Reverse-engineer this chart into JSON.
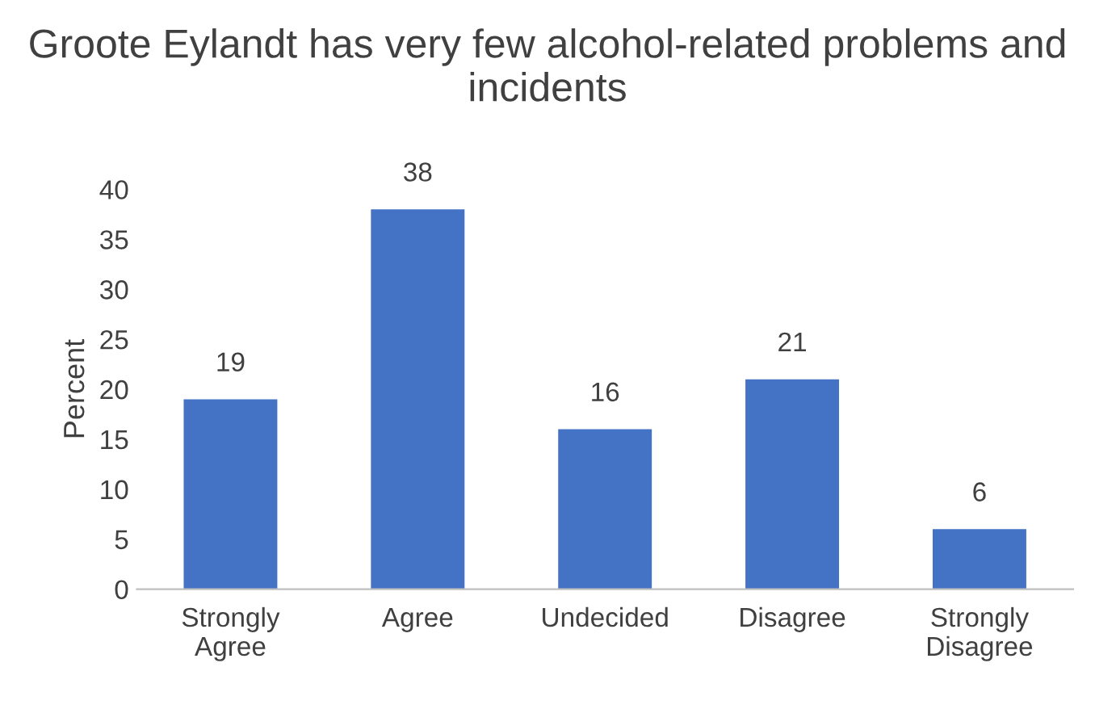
{
  "chart_data": {
    "type": "bar",
    "title": "Groote Eylandt has very few alcohol-related problems and incidents",
    "ylabel": "Percent",
    "categories": [
      "Strongly\nAgree",
      "Agree",
      "Undecided",
      "Disagree",
      "Strongly\nDisagree"
    ],
    "values": [
      19,
      38,
      16,
      21,
      6
    ],
    "color": "#4472c4",
    "ylim": [
      0,
      40
    ],
    "yticks": [
      0,
      5,
      10,
      15,
      20,
      25,
      30,
      35,
      40
    ],
    "grid": false,
    "data_labels": true
  }
}
